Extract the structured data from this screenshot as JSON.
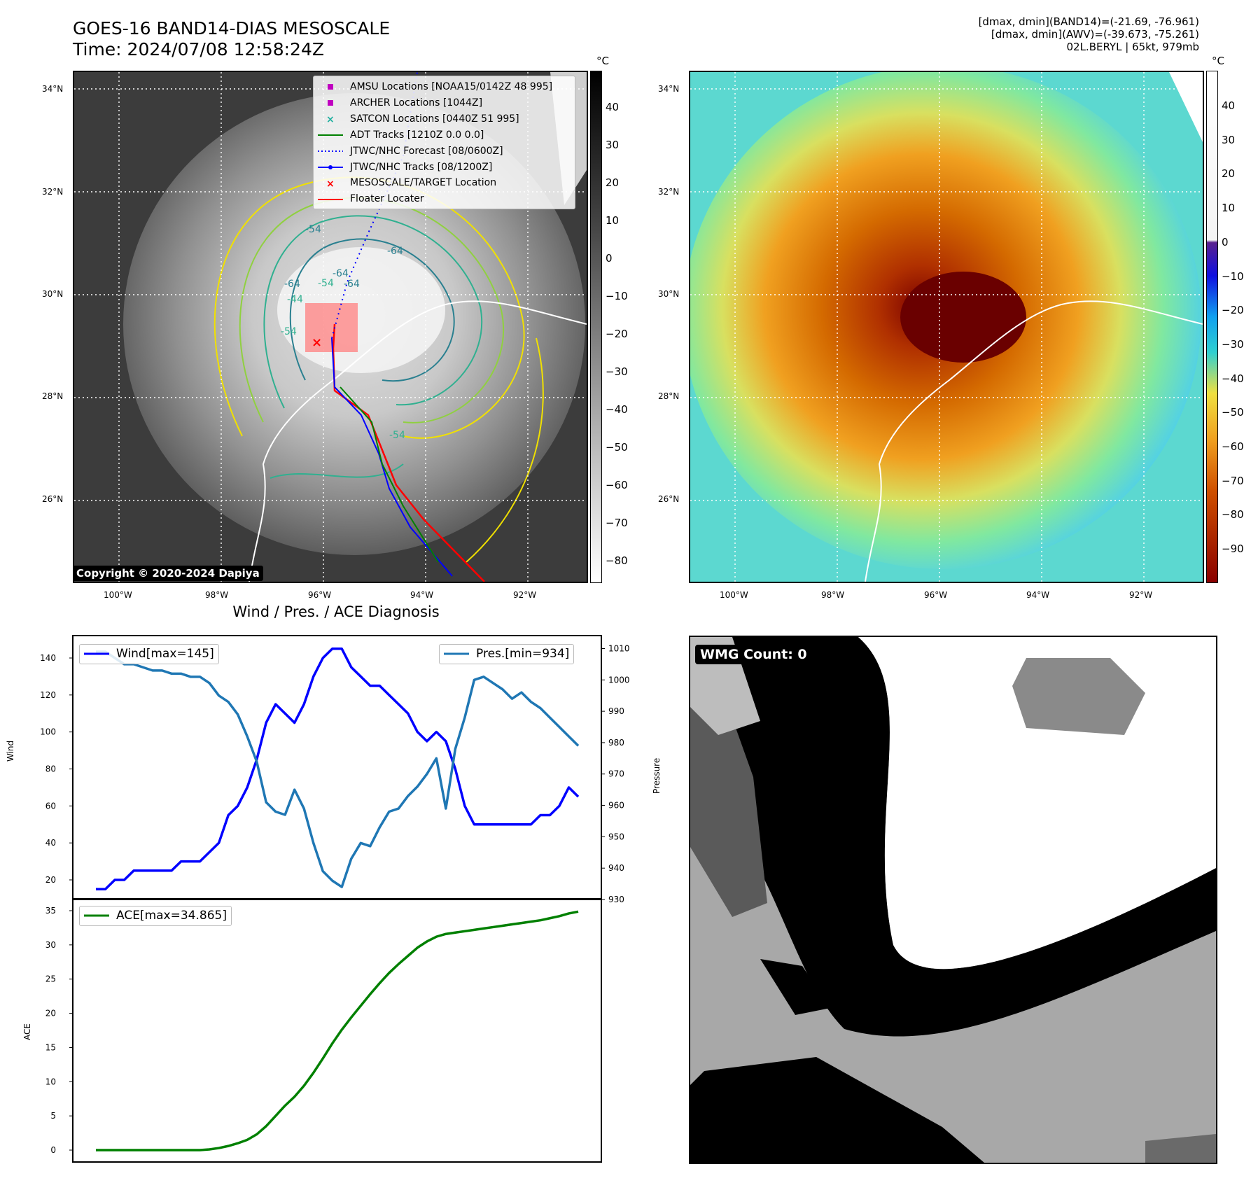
{
  "header": {
    "title_line1": "GOES-16 BAND14-DIAS MESOSCALE",
    "title_line2": "Time: 2024/07/08 12:58:24Z",
    "info_line1": "[dmax, dmin](BAND14)=(-21.69, -76.961)",
    "info_line2": "[dmax, dmin](AWV)=(-39.673, -75.261)",
    "info_line3": "02L.BERYL | 65kt, 979mb"
  },
  "maps": {
    "lat_labels": [
      "34°N",
      "32°N",
      "30°N",
      "28°N",
      "26°N"
    ],
    "lon_labels": [
      "100°W",
      "98°W",
      "96°W",
      "94°W",
      "92°W"
    ],
    "copyright": "Copyright © 2020-2024 Dapiya",
    "unit": "°C",
    "left_cbar_ticks": [
      "40",
      "30",
      "20",
      "10",
      "0",
      "−10",
      "−20",
      "−30",
      "−40",
      "−50",
      "−60",
      "−70",
      "−80"
    ],
    "right_cbar_ticks": [
      "40",
      "30",
      "20",
      "10",
      "0",
      "−10",
      "−20",
      "−30",
      "−40",
      "−50",
      "−60",
      "−70",
      "−80",
      "−90"
    ],
    "contour_labels": [
      "-54",
      "-64",
      "-64",
      "-64",
      "-54",
      "-44",
      "-54",
      "-64",
      "-54"
    ],
    "legend": [
      {
        "label": "AMSU Locations [NOAA15/0142Z 48 995]",
        "symbol": "square",
        "color": "#c000c0"
      },
      {
        "label": "ARCHER Locations [1044Z]",
        "symbol": "square",
        "color": "#c000c0"
      },
      {
        "label": "SATCON Locations [0440Z 51 995]",
        "symbol": "x",
        "color": "#20b0a0"
      },
      {
        "label": "ADT Tracks [1210Z 0.0 0.0]",
        "symbol": "line",
        "color": "#008000"
      },
      {
        "label": "JTWC/NHC Forecast [08/0600Z]",
        "symbol": "dotted",
        "color": "#0000ff"
      },
      {
        "label": "JTWC/NHC Tracks [08/1200Z]",
        "symbol": "line-dot",
        "color": "#0000ff"
      },
      {
        "label": "MESOSCALE/TARGET Location",
        "symbol": "x",
        "color": "#ff0000"
      },
      {
        "label": "Floater Locater",
        "symbol": "line",
        "color": "#ff0000"
      }
    ]
  },
  "diagnosis": {
    "title": "Wind / Pres. / ACE Diagnosis",
    "wind_label": "Wind",
    "pres_label": "Pressure",
    "ace_label": "ACE",
    "wind_legend": "Wind[max=145]",
    "pres_legend": "Pres.[min=934]",
    "ace_legend": "ACE[max=34.865]",
    "wmg": "WMG Count: 0"
  },
  "chart_data": [
    {
      "type": "line",
      "title": "Wind / Pres. / ACE Diagnosis",
      "ylabel": "Wind",
      "y2label": "Pressure",
      "ylim": [
        15,
        151
      ],
      "y2lim": [
        930,
        1011
      ],
      "yticks": [
        20,
        40,
        60,
        80,
        100,
        120,
        140
      ],
      "y2ticks": [
        930,
        940,
        950,
        960,
        970,
        980,
        990,
        1000,
        1010
      ],
      "series": [
        {
          "name": "Wind[max=145]",
          "color": "#0000ff",
          "axis": "left",
          "values": [
            15,
            15,
            20,
            20,
            25,
            25,
            25,
            25,
            25,
            30,
            30,
            30,
            35,
            40,
            55,
            60,
            70,
            85,
            105,
            115,
            110,
            105,
            115,
            130,
            140,
            145,
            145,
            135,
            130,
            125,
            125,
            120,
            115,
            110,
            100,
            95,
            100,
            95,
            80,
            60,
            50,
            50,
            50,
            50,
            50,
            50,
            50,
            55,
            55,
            60,
            70,
            65
          ]
        },
        {
          "name": "Pres.[min=934]",
          "color": "#1f77b4",
          "axis": "right",
          "values": [
            1009,
            1009,
            1007,
            1005,
            1005,
            1004,
            1003,
            1003,
            1002,
            1002,
            1001,
            1001,
            999,
            995,
            993,
            989,
            982,
            974,
            961,
            958,
            957,
            965,
            959,
            948,
            939,
            936,
            934,
            943,
            948,
            947,
            953,
            958,
            959,
            963,
            966,
            970,
            975,
            959,
            978,
            988,
            1000,
            1001,
            999,
            997,
            994,
            996,
            993,
            991,
            988,
            985,
            982,
            979
          ]
        }
      ]
    },
    {
      "type": "line",
      "ylabel": "ACE",
      "ylim": [
        -1.7,
        36.5
      ],
      "yticks": [
        0,
        5,
        10,
        15,
        20,
        25,
        30,
        35
      ],
      "series": [
        {
          "name": "ACE[max=34.865]",
          "color": "#008000",
          "values": [
            0,
            0,
            0,
            0,
            0,
            0,
            0,
            0,
            0,
            0,
            0,
            0,
            0.1,
            0.3,
            0.6,
            1.0,
            1.5,
            2.3,
            3.5,
            5.0,
            6.5,
            7.8,
            9.4,
            11.3,
            13.4,
            15.6,
            17.6,
            19.4,
            21.1,
            22.8,
            24.4,
            25.9,
            27.2,
            28.4,
            29.6,
            30.5,
            31.2,
            31.6,
            31.8,
            32.0,
            32.2,
            32.4,
            32.6,
            32.8,
            33.0,
            33.2,
            33.4,
            33.6,
            33.9,
            34.2,
            34.6,
            34.865
          ]
        }
      ]
    }
  ]
}
